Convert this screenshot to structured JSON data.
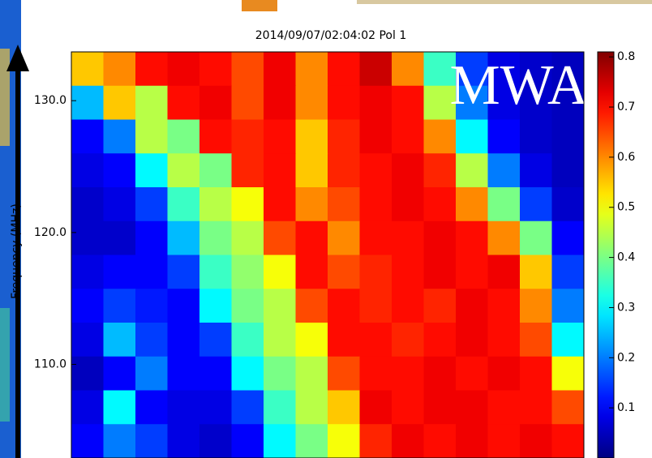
{
  "chart_data": {
    "type": "heatmap",
    "title": "2014/09/07/02:04:02 Pol 1",
    "y_label": "Frequency (MHz)",
    "annotation": "MWA",
    "ylim": [
      133.7,
      102.9
    ],
    "yticks": [
      {
        "value": 130,
        "label": "130.0"
      },
      {
        "value": 120,
        "label": "120.0"
      },
      {
        "value": 110,
        "label": "110.0"
      }
    ],
    "colorbar_lim": [
      0,
      0.81
    ],
    "colorbar_ticks": [
      0.1,
      0.2,
      0.3,
      0.4,
      0.5,
      0.6,
      0.7,
      0.8
    ],
    "colormap": "jet",
    "values": [
      [
        0.55,
        0.6,
        0.7,
        0.72,
        0.7,
        0.65,
        0.72,
        0.6,
        0.7,
        0.75,
        0.6,
        0.35,
        0.15,
        0.08,
        0.06,
        0.05
      ],
      [
        0.25,
        0.55,
        0.45,
        0.7,
        0.72,
        0.65,
        0.72,
        0.6,
        0.7,
        0.72,
        0.7,
        0.45,
        0.2,
        0.08,
        0.06,
        0.05
      ],
      [
        0.1,
        0.2,
        0.45,
        0.4,
        0.7,
        0.68,
        0.7,
        0.55,
        0.68,
        0.72,
        0.7,
        0.6,
        0.3,
        0.1,
        0.06,
        0.05
      ],
      [
        0.08,
        0.1,
        0.3,
        0.45,
        0.4,
        0.68,
        0.7,
        0.55,
        0.68,
        0.7,
        0.72,
        0.68,
        0.45,
        0.2,
        0.08,
        0.05
      ],
      [
        0.06,
        0.08,
        0.15,
        0.35,
        0.45,
        0.5,
        0.7,
        0.6,
        0.65,
        0.7,
        0.72,
        0.7,
        0.6,
        0.4,
        0.15,
        0.06
      ],
      [
        0.06,
        0.06,
        0.1,
        0.25,
        0.4,
        0.45,
        0.65,
        0.7,
        0.6,
        0.7,
        0.7,
        0.72,
        0.7,
        0.6,
        0.4,
        0.1
      ],
      [
        0.08,
        0.1,
        0.1,
        0.15,
        0.35,
        0.42,
        0.5,
        0.7,
        0.65,
        0.68,
        0.7,
        0.72,
        0.7,
        0.72,
        0.55,
        0.15
      ],
      [
        0.1,
        0.15,
        0.12,
        0.1,
        0.3,
        0.4,
        0.45,
        0.65,
        0.7,
        0.68,
        0.7,
        0.68,
        0.72,
        0.7,
        0.6,
        0.2
      ],
      [
        0.08,
        0.25,
        0.15,
        0.1,
        0.15,
        0.35,
        0.45,
        0.5,
        0.7,
        0.7,
        0.68,
        0.7,
        0.72,
        0.7,
        0.65,
        0.3
      ],
      [
        0.05,
        0.1,
        0.2,
        0.1,
        0.1,
        0.3,
        0.4,
        0.45,
        0.65,
        0.7,
        0.7,
        0.72,
        0.7,
        0.72,
        0.7,
        0.5
      ],
      [
        0.08,
        0.3,
        0.1,
        0.08,
        0.08,
        0.15,
        0.35,
        0.45,
        0.55,
        0.72,
        0.7,
        0.72,
        0.72,
        0.7,
        0.7,
        0.65
      ],
      [
        0.1,
        0.2,
        0.15,
        0.08,
        0.06,
        0.1,
        0.3,
        0.4,
        0.5,
        0.68,
        0.72,
        0.7,
        0.72,
        0.7,
        0.72,
        0.7
      ]
    ]
  }
}
